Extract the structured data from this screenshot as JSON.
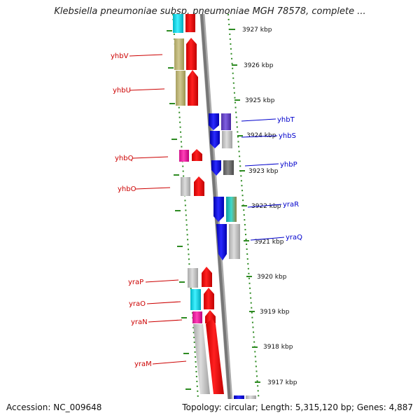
{
  "header": {
    "title": "Klebsiella pneumoniae subsp. pneumoniae MGH 78578, complete ..."
  },
  "footer": {
    "accession": "Accession: NC_009648",
    "topology": "Topology: circular; Length: 5,315,120 bp; Genes: 4,887"
  },
  "colors": {
    "label_left": "#cc0000",
    "label_right": "#0000cc",
    "tick": "#2e8b22",
    "backbone": "#888888"
  },
  "ticks": [
    {
      "label": "3927 kbp"
    },
    {
      "label": "3926 kbp"
    },
    {
      "label": "3925 kbp"
    },
    {
      "label": "3924 kbp"
    },
    {
      "label": "3923 kbp"
    },
    {
      "label": "3922 kbp"
    },
    {
      "label": "3921 kbp"
    },
    {
      "label": "3920 kbp"
    },
    {
      "label": "3919 kbp"
    },
    {
      "label": "3918 kbp"
    },
    {
      "label": "3917 kbp"
    }
  ],
  "genes": [
    {
      "name": "yhbV",
      "strand": "forward"
    },
    {
      "name": "yhbU",
      "strand": "forward"
    },
    {
      "name": "yhbT",
      "strand": "reverse"
    },
    {
      "name": "yhbS",
      "strand": "reverse"
    },
    {
      "name": "yhbQ",
      "strand": "forward"
    },
    {
      "name": "yhbP",
      "strand": "reverse"
    },
    {
      "name": "yhbO",
      "strand": "forward"
    },
    {
      "name": "yraR",
      "strand": "reverse"
    },
    {
      "name": "yraQ",
      "strand": "reverse"
    },
    {
      "name": "yraP",
      "strand": "forward"
    },
    {
      "name": "yraO",
      "strand": "forward"
    },
    {
      "name": "yraN",
      "strand": "forward"
    },
    {
      "name": "yraM",
      "strand": "forward"
    }
  ]
}
